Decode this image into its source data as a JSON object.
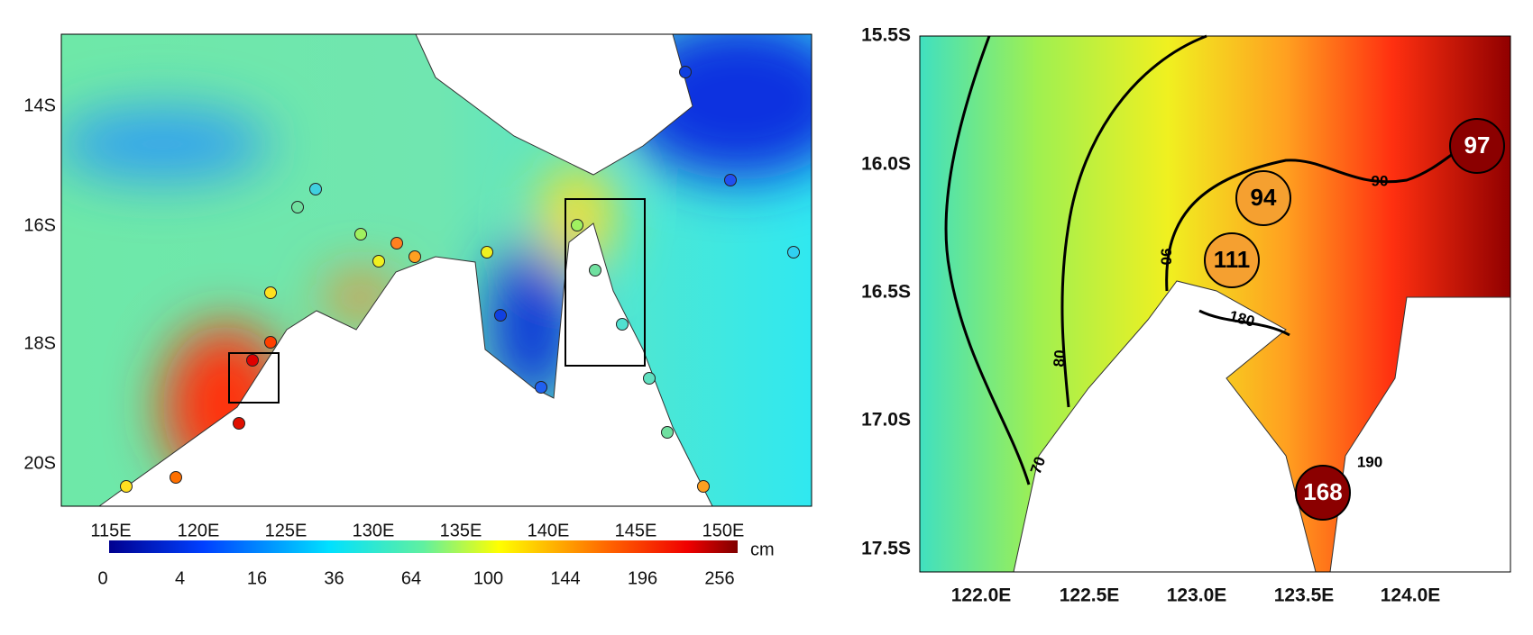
{
  "left_map": {
    "x_labels": [
      "115E",
      "120E",
      "125E",
      "130E",
      "135E",
      "140E",
      "145E",
      "150E"
    ],
    "y_labels": [
      "14S",
      "16S",
      "18S",
      "20S"
    ],
    "colorbar": {
      "ticks": [
        "0",
        "4",
        "16",
        "36",
        "64",
        "100",
        "144",
        "196",
        "256"
      ],
      "unit": "cm"
    }
  },
  "right_map": {
    "x_labels": [
      "122.0E",
      "122.5E",
      "123.0E",
      "123.5E",
      "124.0E"
    ],
    "y_labels": [
      "15.5S",
      "16.0S",
      "16.5S",
      "17.0S",
      "17.5S"
    ],
    "contour_labels": [
      "70",
      "80",
      "90",
      "90",
      "180",
      "190"
    ],
    "stations": [
      "97",
      "94",
      "111",
      "168"
    ]
  }
}
